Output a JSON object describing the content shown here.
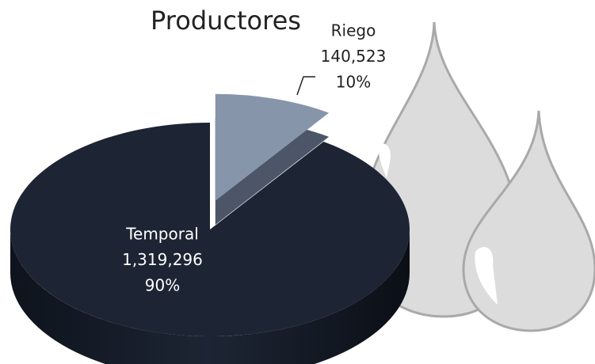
{
  "chart_data": {
    "type": "pie",
    "title": "Productores",
    "categories": [
      "Riego",
      "Temporal"
    ],
    "values": [
      140523,
      1319296
    ],
    "value_labels": [
      "140,523",
      "1,319,296"
    ],
    "percent_labels": [
      "10%",
      "90%"
    ],
    "colors": [
      "#8795ab",
      "#1d2534"
    ]
  }
}
